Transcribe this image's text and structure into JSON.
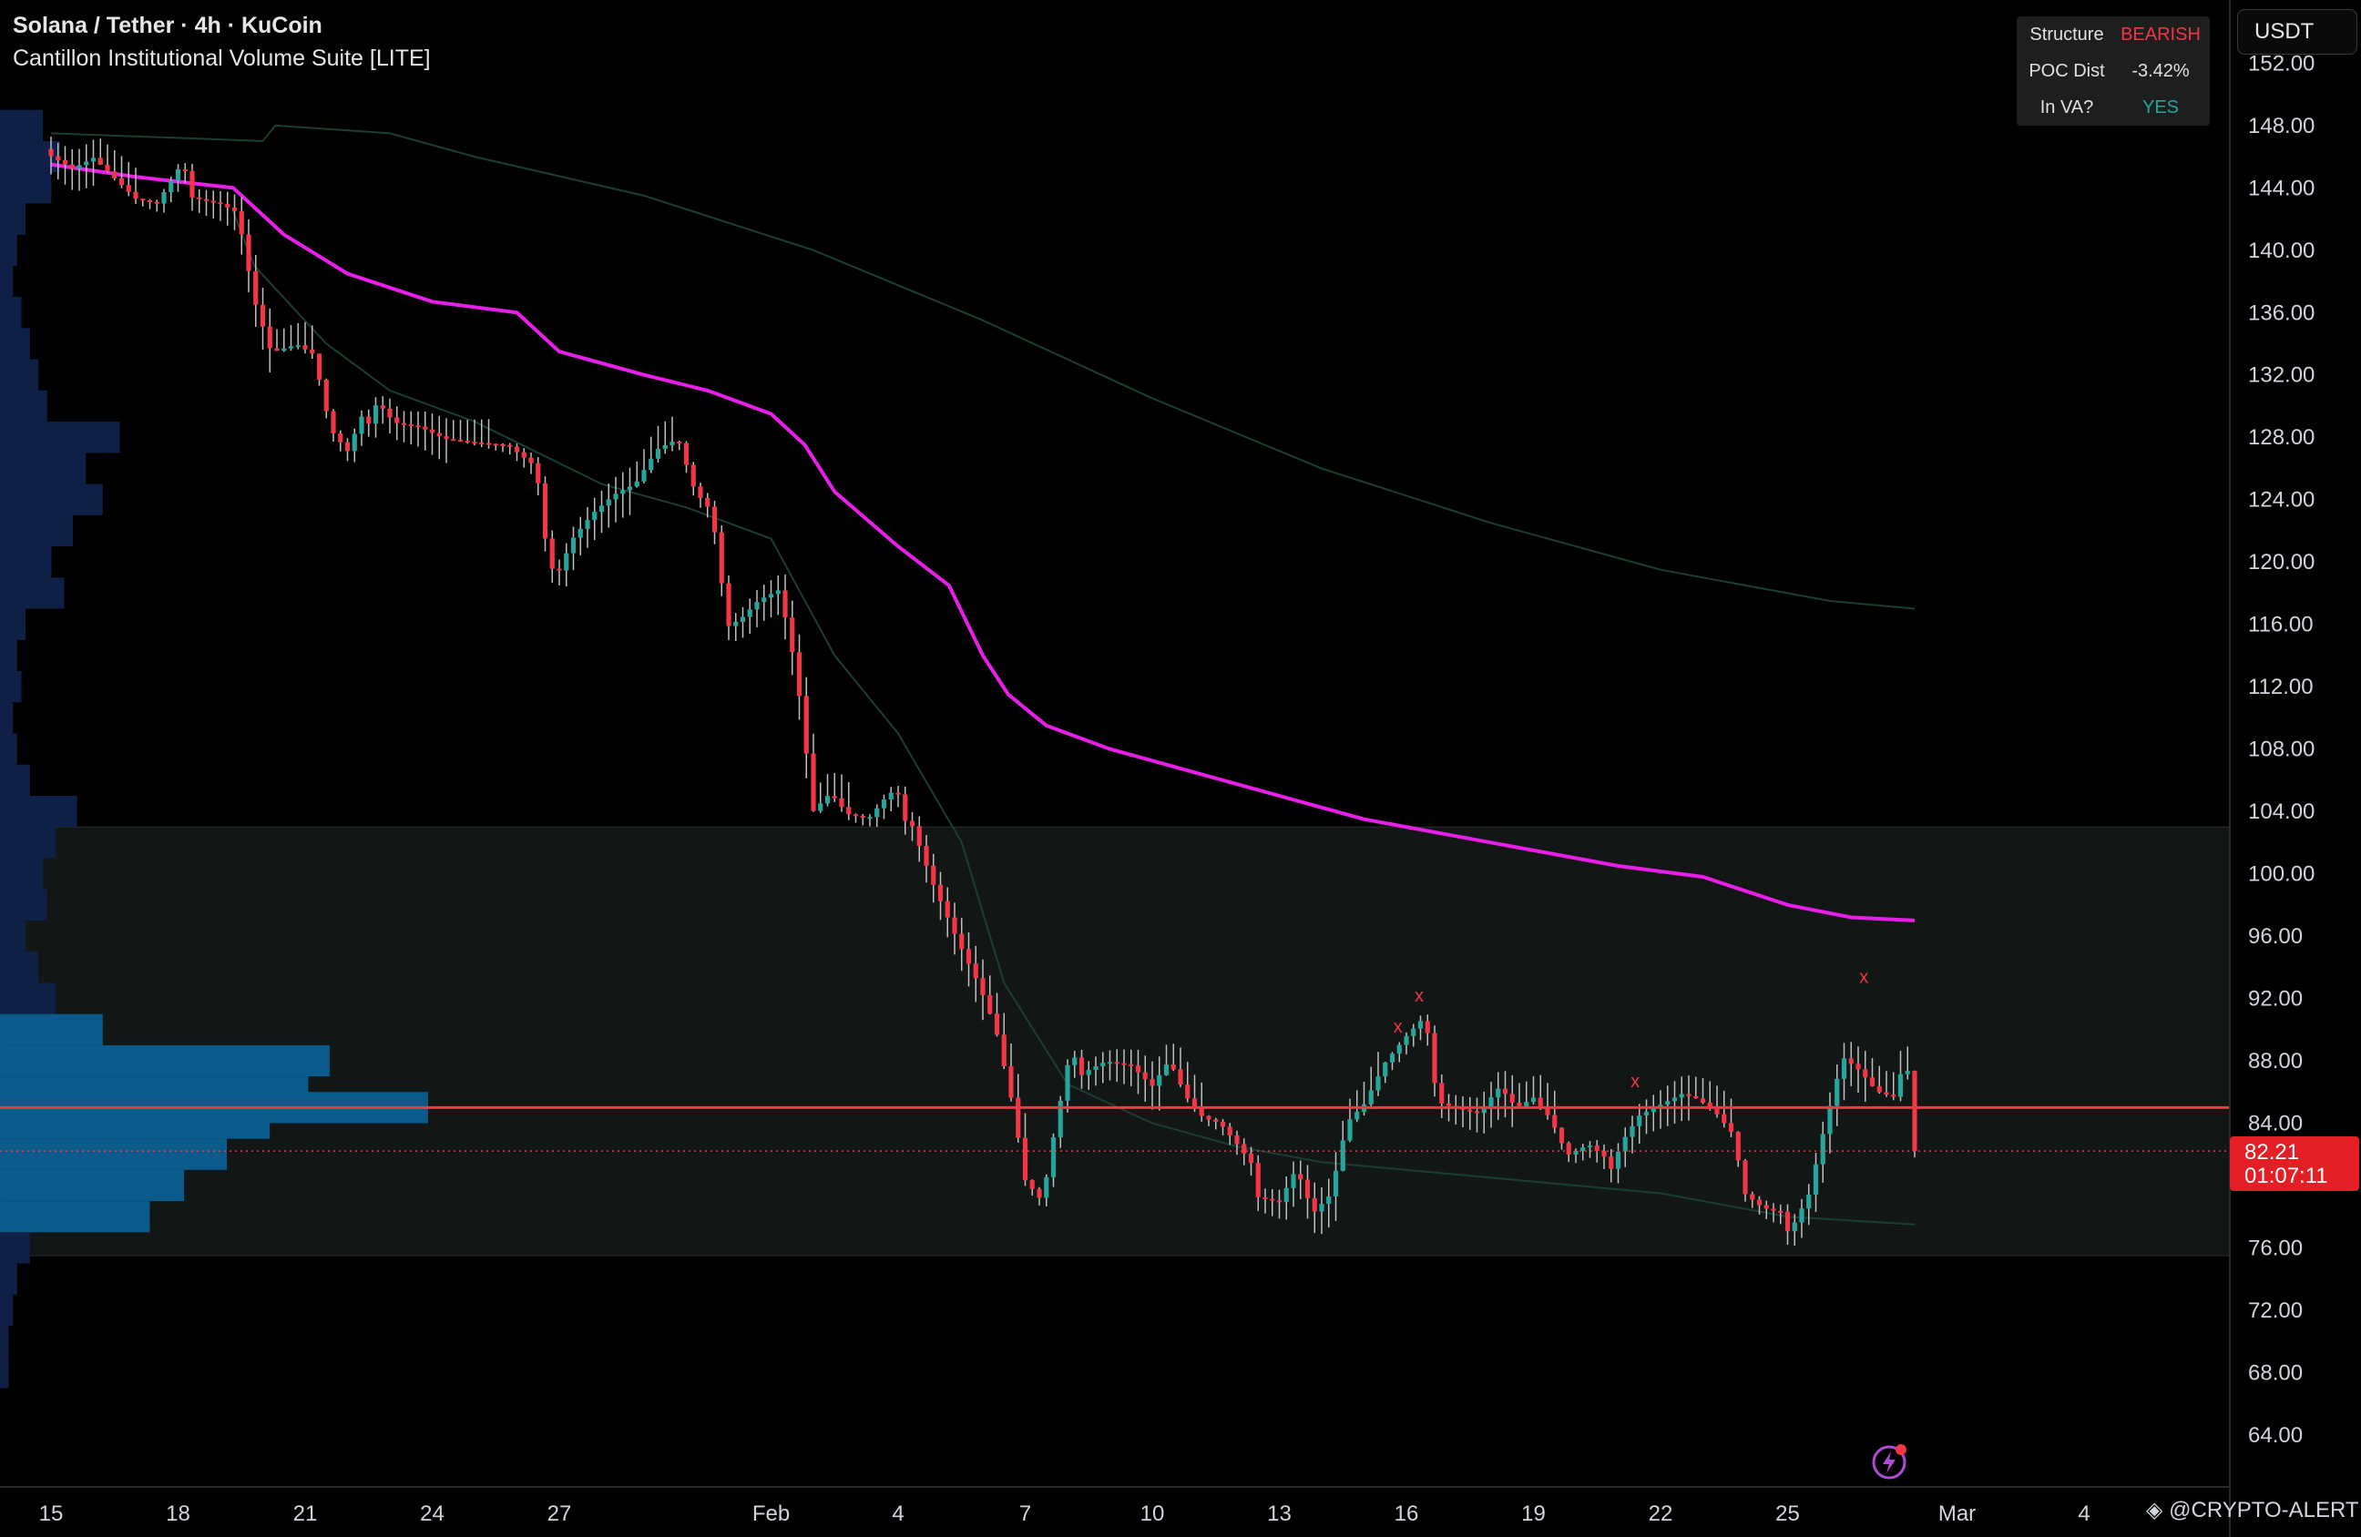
{
  "header": {
    "title": "Solana / Tether · 4h · KuCoin",
    "subtitle": "Cantillon Institutional Volume Suite [LITE]"
  },
  "status_table": {
    "rows": [
      {
        "label": "Structure",
        "value": "BEARISH",
        "color": "#f23645"
      },
      {
        "label": "POC Dist",
        "value": "-3.42%",
        "color": "#e0e0e0"
      },
      {
        "label": "In VA?",
        "value": "YES",
        "color": "#26a69a"
      }
    ]
  },
  "currency_button": {
    "label": "USDT"
  },
  "price_tag": {
    "price": "82.21",
    "countdown": "01:07:11"
  },
  "watermark": {
    "text": "@CRYPTO-ALERT"
  },
  "colors": {
    "up": "#26a69a",
    "down": "#f23645",
    "vwap": "#e91ee9",
    "poc": "#f23645",
    "band": "#1b3d35",
    "value_area": "#121614",
    "profile_outer": "#0f2046",
    "profile_inner": "#0a5a8c"
  },
  "chart_data": {
    "type": "candlestick",
    "symbol": "Solana / Tether",
    "timeframe": "4h",
    "exchange": "KuCoin",
    "ylim": [
      60,
      155
    ],
    "y_ticks": [
      "152.00",
      "148.00",
      "144.00",
      "140.00",
      "136.00",
      "132.00",
      "128.00",
      "124.00",
      "120.00",
      "116.00",
      "112.00",
      "108.00",
      "104.00",
      "100.00",
      "96.00",
      "92.00",
      "88.00",
      "84.00",
      "76.00",
      "72.00",
      "68.00",
      "64.00"
    ],
    "x_ticks": [
      "15",
      "18",
      "21",
      "24",
      "27",
      "Feb",
      "4",
      "7",
      "10",
      "13",
      "16",
      "19",
      "22",
      "25",
      "Mar",
      "4"
    ],
    "x_tick_days": [
      0,
      3,
      6,
      9,
      12,
      17,
      20,
      23,
      26,
      29,
      32,
      35,
      38,
      41,
      45,
      48
    ],
    "close_path": [
      [
        0.0,
        146.5
      ],
      [
        0.5,
        145.5
      ],
      [
        1.0,
        146.0
      ],
      [
        1.5,
        144.5
      ],
      [
        2.0,
        143.0
      ],
      [
        2.5,
        142.5
      ],
      [
        3.0,
        144.5
      ],
      [
        3.5,
        144.0
      ],
      [
        4.0,
        143.5
      ],
      [
        4.4,
        142.8
      ],
      [
        4.8,
        137.0
      ],
      [
        5.2,
        133.5
      ],
      [
        5.8,
        133.8
      ],
      [
        6.2,
        133.0
      ],
      [
        6.6,
        128.0
      ],
      [
        7.0,
        126.5
      ],
      [
        7.4,
        129.0
      ],
      [
        7.7,
        131.0
      ],
      [
        8.1,
        129.5
      ],
      [
        8.7,
        129.0
      ],
      [
        9.3,
        128.0
      ],
      [
        10.0,
        127.5
      ],
      [
        10.8,
        127.0
      ],
      [
        11.4,
        125.5
      ],
      [
        11.9,
        119.5
      ],
      [
        12.3,
        122.0
      ],
      [
        12.8,
        123.5
      ],
      [
        13.3,
        124.5
      ],
      [
        13.8,
        125.0
      ],
      [
        14.3,
        127.0
      ],
      [
        14.8,
        127.5
      ],
      [
        15.2,
        124.0
      ],
      [
        15.6,
        122.5
      ],
      [
        15.9,
        116.5
      ],
      [
        16.3,
        117.0
      ],
      [
        16.7,
        118.0
      ],
      [
        17.2,
        118.5
      ],
      [
        17.6,
        113.0
      ],
      [
        18.0,
        104.0
      ],
      [
        18.4,
        105.0
      ],
      [
        18.8,
        103.5
      ],
      [
        19.3,
        103.0
      ],
      [
        19.8,
        104.5
      ],
      [
        20.3,
        104.0
      ],
      [
        20.8,
        100.0
      ],
      [
        21.4,
        96.0
      ],
      [
        21.9,
        93.0
      ],
      [
        22.3,
        90.0
      ],
      [
        22.7,
        85.0
      ],
      [
        23.0,
        80.0
      ],
      [
        23.4,
        78.5
      ],
      [
        23.7,
        83.0
      ],
      [
        24.0,
        87.0
      ],
      [
        24.4,
        88.0
      ],
      [
        24.9,
        88.5
      ],
      [
        25.5,
        88.0
      ],
      [
        26.0,
        86.5
      ],
      [
        26.4,
        88.0
      ],
      [
        26.8,
        85.5
      ],
      [
        27.2,
        84.0
      ],
      [
        27.6,
        83.5
      ],
      [
        28.0,
        82.0
      ],
      [
        28.5,
        80.0
      ],
      [
        29.0,
        79.5
      ],
      [
        29.4,
        81.5
      ],
      [
        29.8,
        78.5
      ],
      [
        30.2,
        79.5
      ],
      [
        30.6,
        84.0
      ],
      [
        31.0,
        85.0
      ],
      [
        31.5,
        87.5
      ],
      [
        32.0,
        89.0
      ],
      [
        32.4,
        90.0
      ],
      [
        32.8,
        86.0
      ],
      [
        33.2,
        85.5
      ],
      [
        33.7,
        85.0
      ],
      [
        34.2,
        86.5
      ],
      [
        34.6,
        85.0
      ],
      [
        35.0,
        85.5
      ],
      [
        35.4,
        84.0
      ],
      [
        35.8,
        81.5
      ],
      [
        36.3,
        82.0
      ],
      [
        36.7,
        81.0
      ],
      [
        37.1,
        83.5
      ],
      [
        37.5,
        85.0
      ],
      [
        38.0,
        85.5
      ],
      [
        38.5,
        86.0
      ],
      [
        38.9,
        85.5
      ],
      [
        39.3,
        84.5
      ],
      [
        39.7,
        83.0
      ],
      [
        40.0,
        79.0
      ],
      [
        40.4,
        78.0
      ],
      [
        40.8,
        77.5
      ],
      [
        41.1,
        78.0
      ],
      [
        41.5,
        80.0
      ],
      [
        41.9,
        84.5
      ],
      [
        42.3,
        88.5
      ],
      [
        42.7,
        87.5
      ],
      [
        43.1,
        86.0
      ],
      [
        43.5,
        85.5
      ],
      [
        43.8,
        88.0
      ],
      [
        44.0,
        82.21
      ]
    ],
    "vwap": [
      [
        0.0,
        145.5
      ],
      [
        2.0,
        144.7
      ],
      [
        4.3,
        144.0
      ],
      [
        5.5,
        141.0
      ],
      [
        7.0,
        138.5
      ],
      [
        9.0,
        136.7
      ],
      [
        11.0,
        136.0
      ],
      [
        12.0,
        133.5
      ],
      [
        14.0,
        132.0
      ],
      [
        15.5,
        131.0
      ],
      [
        17.0,
        129.5
      ],
      [
        17.8,
        127.5
      ],
      [
        18.5,
        124.5
      ],
      [
        20.0,
        121.0
      ],
      [
        21.2,
        118.5
      ],
      [
        22.0,
        114.0
      ],
      [
        22.6,
        111.5
      ],
      [
        23.5,
        109.5
      ],
      [
        25.0,
        108.0
      ],
      [
        27.0,
        106.5
      ],
      [
        29.0,
        105.0
      ],
      [
        31.0,
        103.5
      ],
      [
        33.0,
        102.5
      ],
      [
        35.0,
        101.5
      ],
      [
        37.0,
        100.5
      ],
      [
        39.0,
        99.8
      ],
      [
        41.0,
        98.0
      ],
      [
        42.5,
        97.2
      ],
      [
        44.0,
        97.0
      ]
    ],
    "upper_band": [
      [
        0.0,
        147.5
      ],
      [
        5.0,
        147.0
      ],
      [
        5.3,
        148.0
      ],
      [
        8.0,
        147.5
      ],
      [
        10.0,
        146.0
      ],
      [
        14.0,
        143.5
      ],
      [
        18.0,
        140.0
      ],
      [
        22.0,
        135.5
      ],
      [
        26.0,
        130.5
      ],
      [
        30.0,
        126.0
      ],
      [
        34.0,
        122.5
      ],
      [
        38.0,
        119.5
      ],
      [
        42.0,
        117.5
      ],
      [
        44.0,
        117.0
      ]
    ],
    "lower_band": [
      [
        4.3,
        142.5
      ],
      [
        4.8,
        139.0
      ],
      [
        6.5,
        134.0
      ],
      [
        8.0,
        131.0
      ],
      [
        10.0,
        129.0
      ],
      [
        11.5,
        127.0
      ],
      [
        13.0,
        125.0
      ],
      [
        15.0,
        123.5
      ],
      [
        17.0,
        121.5
      ],
      [
        18.5,
        114.0
      ],
      [
        20.0,
        109.0
      ],
      [
        21.5,
        102.0
      ],
      [
        22.5,
        93.0
      ],
      [
        24.0,
        86.5
      ],
      [
        26.0,
        84.0
      ],
      [
        28.0,
        82.5
      ],
      [
        30.0,
        81.5
      ],
      [
        34.0,
        80.5
      ],
      [
        38.0,
        79.5
      ],
      [
        41.0,
        78.0
      ],
      [
        44.0,
        77.5
      ]
    ],
    "poc": 85.0,
    "value_area": [
      75.5,
      103.0
    ],
    "current_price": 82.21,
    "swing_markers": [
      {
        "day": 31.8,
        "price": 89.8,
        "label": "x"
      },
      {
        "day": 32.3,
        "price": 91.8,
        "label": "x"
      },
      {
        "day": 37.4,
        "price": 86.3,
        "label": "x"
      },
      {
        "day": 42.8,
        "price": 93.0,
        "label": "x"
      }
    ],
    "volume_profile": [
      {
        "price": 148,
        "vol": 0.1
      },
      {
        "price": 146,
        "vol": 0.14
      },
      {
        "price": 144,
        "vol": 0.12
      },
      {
        "price": 142,
        "vol": 0.06
      },
      {
        "price": 140,
        "vol": 0.04
      },
      {
        "price": 138,
        "vol": 0.03
      },
      {
        "price": 136,
        "vol": 0.05
      },
      {
        "price": 134,
        "vol": 0.07
      },
      {
        "price": 132,
        "vol": 0.09
      },
      {
        "price": 130,
        "vol": 0.11
      },
      {
        "price": 128,
        "vol": 0.28
      },
      {
        "price": 126,
        "vol": 0.2
      },
      {
        "price": 124,
        "vol": 0.24
      },
      {
        "price": 122,
        "vol": 0.17
      },
      {
        "price": 120,
        "vol": 0.12
      },
      {
        "price": 118,
        "vol": 0.15
      },
      {
        "price": 116,
        "vol": 0.06
      },
      {
        "price": 114,
        "vol": 0.04
      },
      {
        "price": 112,
        "vol": 0.05
      },
      {
        "price": 110,
        "vol": 0.03
      },
      {
        "price": 108,
        "vol": 0.04
      },
      {
        "price": 106,
        "vol": 0.07
      },
      {
        "price": 104,
        "vol": 0.18
      },
      {
        "price": 102,
        "vol": 0.13
      },
      {
        "price": 100,
        "vol": 0.1
      },
      {
        "price": 98,
        "vol": 0.11
      },
      {
        "price": 96,
        "vol": 0.06
      },
      {
        "price": 94,
        "vol": 0.09
      },
      {
        "price": 92,
        "vol": 0.13
      },
      {
        "price": 90,
        "vol": 0.24
      },
      {
        "price": 88,
        "vol": 0.77
      },
      {
        "price": 86,
        "vol": 0.72
      },
      {
        "price": 85,
        "vol": 1.0
      },
      {
        "price": 84,
        "vol": 0.63
      },
      {
        "price": 82,
        "vol": 0.53
      },
      {
        "price": 80,
        "vol": 0.43
      },
      {
        "price": 78,
        "vol": 0.35
      },
      {
        "price": 76,
        "vol": 0.07
      },
      {
        "price": 74,
        "vol": 0.04
      },
      {
        "price": 72,
        "vol": 0.03
      },
      {
        "price": 70,
        "vol": 0.02
      },
      {
        "price": 68,
        "vol": 0.02
      }
    ]
  }
}
